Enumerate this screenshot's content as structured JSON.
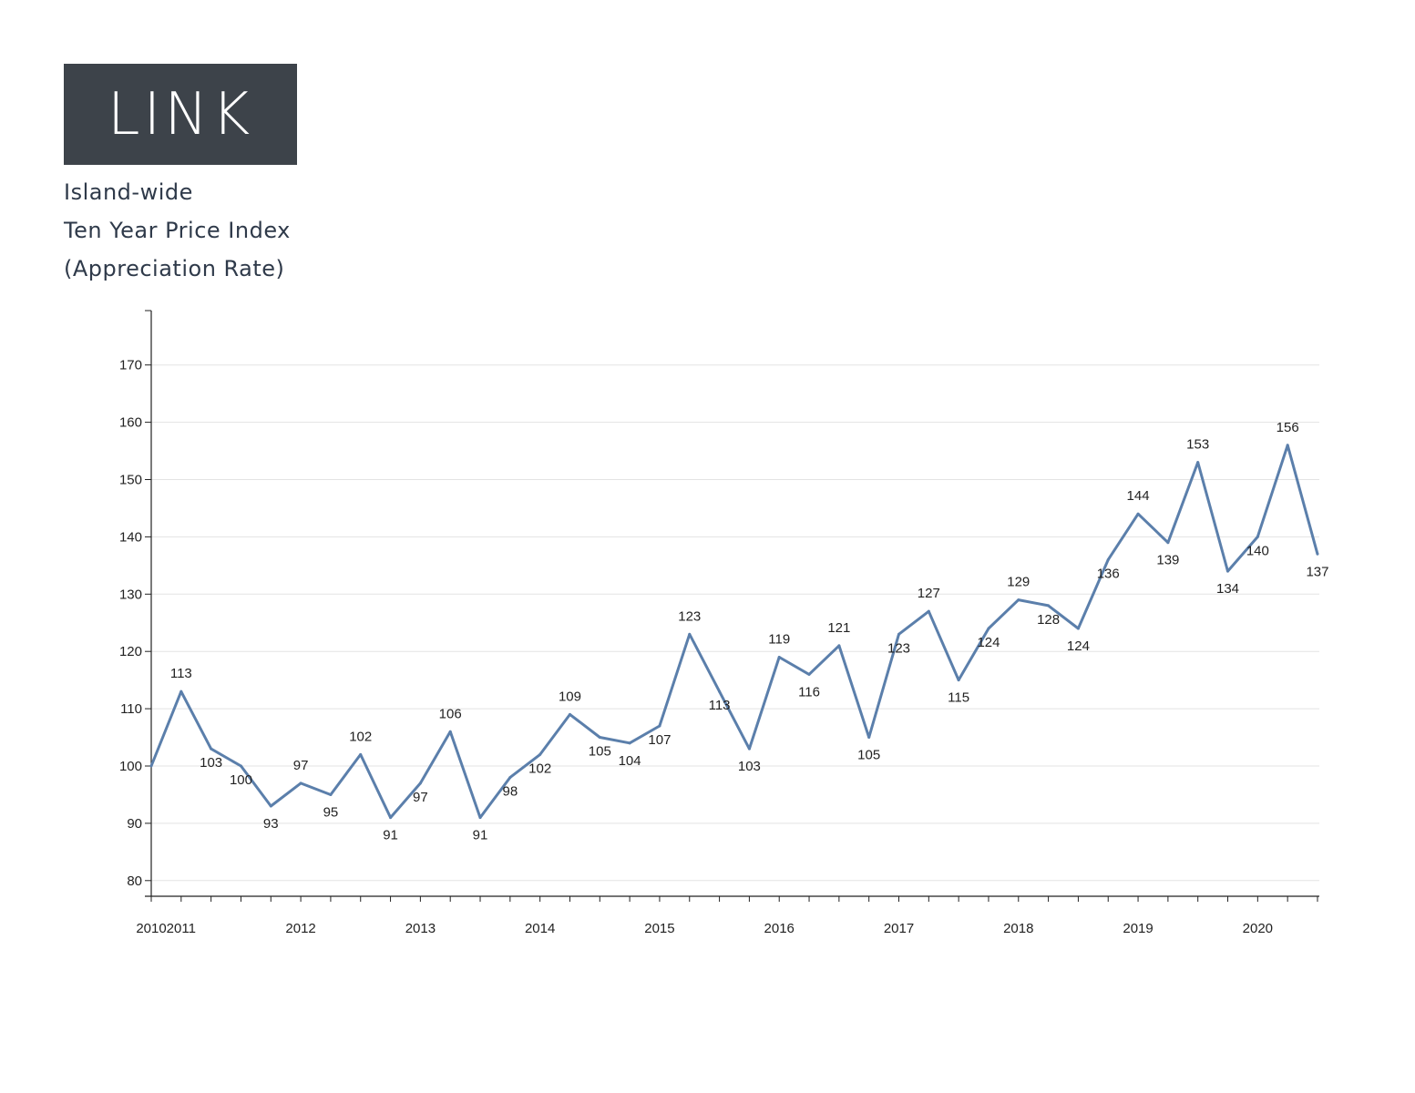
{
  "logo": {
    "text": "LINK"
  },
  "header": {
    "line1": "Island-wide",
    "line2": "Ten Year Price Index",
    "line3": "(Appreciation Rate)"
  },
  "colors": {
    "line": "#5b7fab",
    "logo_bg": "#3d434a",
    "grid": "#e3e3e3",
    "axis": "#222222"
  },
  "chart_data": {
    "type": "line",
    "title": "Ten Year Price Index",
    "xlabel": "",
    "ylabel": "",
    "ylim": [
      78,
      180
    ],
    "yticks": [
      80,
      90,
      100,
      110,
      120,
      130,
      140,
      150,
      160,
      170
    ],
    "grid": true,
    "xticks": [
      {
        "label": "2010",
        "index": 0
      },
      {
        "label": "2011",
        "index": 1
      },
      {
        "label": "2012",
        "index": 5
      },
      {
        "label": "2013",
        "index": 9
      },
      {
        "label": "2014",
        "index": 13
      },
      {
        "label": "2015",
        "index": 17
      },
      {
        "label": "2016",
        "index": 21
      },
      {
        "label": "2017",
        "index": 25
      },
      {
        "label": "2018",
        "index": 29
      },
      {
        "label": "2019",
        "index": 33
      },
      {
        "label": "2020",
        "index": 37
      }
    ],
    "series": [
      {
        "values": [
          100,
          113,
          103,
          100,
          93,
          97,
          95,
          102,
          91,
          97,
          106,
          91,
          98,
          102,
          109,
          105,
          104,
          107,
          123,
          113,
          103,
          119,
          116,
          121,
          105,
          123,
          127,
          115,
          124,
          129,
          128,
          124,
          136,
          144,
          139,
          153,
          134,
          140,
          156,
          137
        ]
      }
    ],
    "data_labels": [
      "",
      "113",
      "103",
      "100",
      "93",
      "97",
      "95",
      "102",
      "91",
      "97",
      "106",
      "91",
      "98",
      "102",
      "109",
      "105",
      "104",
      "107",
      "123",
      "113",
      "103",
      "119",
      "116",
      "121",
      "105",
      "123",
      "127",
      "115",
      "124",
      "129",
      "128",
      "124",
      "136",
      "144",
      "139",
      "153",
      "134",
      "140",
      "156",
      "137"
    ]
  }
}
